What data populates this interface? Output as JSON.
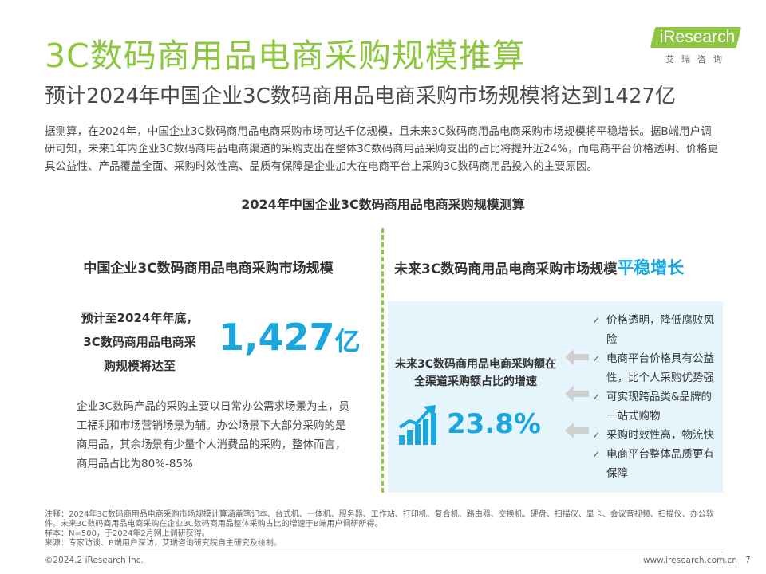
{
  "header": {
    "title": "3C数码商用品电商采购规模推算",
    "subtitle": "预计2024年中国企业3C数码商用品电商采购市场规模将达到1427亿"
  },
  "logo": {
    "brand": "iResearch",
    "chinese": "艾瑞咨询"
  },
  "intro": "据测算，在2024年，中国企业3C数码商用品电商采购市场可达千亿规模，且未来3C数码商用品电商采购市场规模将平稳增长。据B端用户调研可知，未来1年内企业3C数码商用品电商渠道的采购支出在整体3C数码商用品采购支出的占比将提升近24%，而电商平台价格透明、价格更具公益性、产品覆盖全面、采购时效性高、品质有保障是企业加大在电商平台上采购3C数码商用品投入的主要原因。",
  "chart_title": "2024年中国企业3C数码商用品电商采购规模测算",
  "left": {
    "heading": "中国企业3C数码商用品电商采购市场规模",
    "desc_lines": [
      "预计至2024年年底，",
      "3C数码商用品电商采",
      "购规模将达至"
    ],
    "value": "1,427",
    "unit": "亿",
    "paragraph": "企业3C数码产品的采购主要以日常办公需求场景为主，员工福利和市场营销场景为辅。办公场景下大部分采购的是商用品，其余场景有少量个人消费品的采购，整体而言，商用品占比为80%-85%"
  },
  "right": {
    "heading_prefix": "未来3C数码商用品电商采购市场规模",
    "heading_emphasis": "平稳增长",
    "growth_label_lines": [
      "未来3C数码商用品电商采购额在",
      "全渠道采购额占比的增速"
    ],
    "growth_value": "23.8%",
    "growth_icon": "rising-bar-chart-icon",
    "arrow_icon": "left-arrow-icon",
    "check_icon": "checkmark-icon",
    "check_mark": "✓",
    "reasons": [
      {
        "lines": [
          "价格透明，降低腐败风",
          "险"
        ]
      },
      {
        "lines": [
          "电商平台价格具有公益",
          "性，比个人采购优势强"
        ]
      },
      {
        "lines": [
          "可实现跨品类&品牌的",
          "一站式购物"
        ]
      },
      {
        "lines": [
          "采购时效性高，物流快"
        ]
      },
      {
        "lines": [
          "电商平台整体品质更有",
          "保障"
        ]
      }
    ]
  },
  "notes": {
    "note": "注释：2024年3C数码商用品电商采购市场规模计算涵盖笔记本、台式机、一体机、服务器、工作站、打印机、复合机、路由器、交换机、硬盘、扫描仪、显卡、会议音视频、扫描仪、办公软件。未来3C数码商用品电商采购在企业3C数码商用品整体采购占比的增速于B端用户调研所得。",
    "sample": "样本：N=500，于2024年2月网上调研获得。",
    "source": "来源：专家访谈、B端用户深访，艾瑞咨询研究院自主研究及绘制。"
  },
  "footer": {
    "copyright": "©2024.2 iResearch Inc.",
    "website": "www.iresearch.com.cn",
    "page": "7"
  },
  "colors": {
    "brand_green": "#8dc63f",
    "accent_blue": "#1aa7dd",
    "panel_bg": "#e6f4fb",
    "arrow_gray": "#d0d0d0"
  }
}
